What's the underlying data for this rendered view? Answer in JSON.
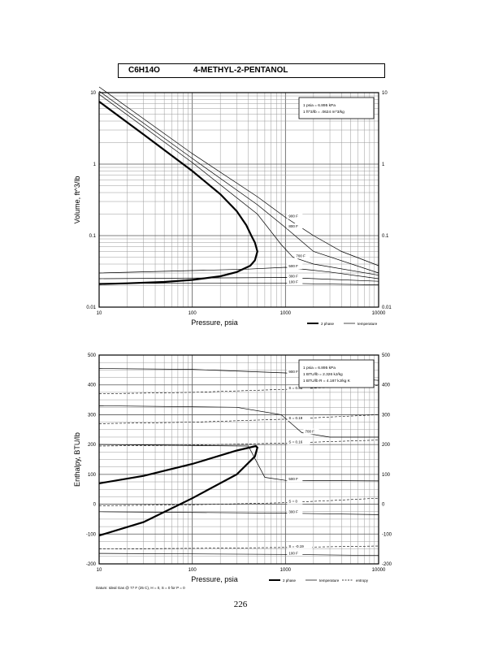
{
  "header": {
    "formula": "C6H14O",
    "name": "4-METHYL-2-PENTANOL"
  },
  "page_number": "226",
  "chart_data": [
    {
      "type": "line",
      "xlabel": "Pressure,  psia",
      "ylabel": "Volume, ft^3/lb",
      "xscale": "log",
      "yscale": "log",
      "xlim": [
        10,
        10000
      ],
      "ylim": [
        0.01,
        10
      ],
      "x_ticks": [
        "10",
        "100",
        "1000",
        "10000"
      ],
      "y_ticks_left": [
        "10",
        "1",
        "0.1",
        "0.01"
      ],
      "y_ticks_right": [
        "10",
        "1",
        "0.1",
        "0.01"
      ],
      "grid": true,
      "legend_position": "bottom-right",
      "legend": [
        "2 phase",
        "temperature"
      ],
      "conversion_box": [
        "1 psia = 6.895 kPa",
        "1 ft^3/lb = .0624 m^3/kg"
      ],
      "series": [
        {
          "name": "2 phase",
          "style": "two-phase",
          "x": [
            10,
            30,
            100,
            200,
            300,
            380,
            430,
            470,
            500,
            470,
            420,
            300,
            200,
            100,
            50,
            20,
            10
          ],
          "y": [
            7.5,
            2.6,
            0.8,
            0.38,
            0.22,
            0.14,
            0.1,
            0.08,
            0.06,
            0.045,
            0.038,
            0.031,
            0.027,
            0.024,
            0.0225,
            0.0215,
            0.021
          ]
        },
        {
          "label": "900 F",
          "style": "isotherm",
          "x": [
            10,
            100,
            500,
            1000,
            2000,
            4000,
            10000
          ],
          "y": [
            12,
            1.4,
            0.35,
            0.18,
            0.1,
            0.06,
            0.038
          ]
        },
        {
          "label": "800 F",
          "style": "isotherm",
          "x": [
            10,
            100,
            500,
            1000,
            2000,
            10000
          ],
          "y": [
            10.5,
            1.2,
            0.27,
            0.13,
            0.06,
            0.03
          ]
        },
        {
          "label": "700 F",
          "style": "isotherm",
          "x": [
            10,
            100,
            500,
            900,
            1200,
            2000,
            10000
          ],
          "y": [
            9.5,
            1.05,
            0.2,
            0.075,
            0.05,
            0.04,
            0.028
          ]
        },
        {
          "label": "500 F",
          "style": "isotherm",
          "x": [
            10,
            400,
            1000,
            3000,
            10000
          ],
          "y": [
            0.03,
            0.034,
            0.036,
            0.031,
            0.025
          ]
        },
        {
          "label": "300 F",
          "style": "isotherm",
          "x": [
            10,
            1000,
            10000
          ],
          "y": [
            0.025,
            0.026,
            0.023
          ]
        },
        {
          "label": "100 F",
          "style": "isotherm",
          "x": [
            10,
            1000,
            10000
          ],
          "y": [
            0.0215,
            0.0215,
            0.0205
          ]
        }
      ]
    },
    {
      "type": "line",
      "xlabel": "Pressure,  psia",
      "ylabel": "Enthalpy, BTU/lb",
      "xscale": "log",
      "yscale": "linear",
      "xlim": [
        10,
        10000
      ],
      "ylim": [
        -200,
        500
      ],
      "x_ticks": [
        "10",
        "100",
        "1000",
        "10000"
      ],
      "y_ticks": [
        "500",
        "400",
        "300",
        "200",
        "100",
        "0",
        "-100",
        "-200"
      ],
      "grid": true,
      "legend_position": "bottom-right",
      "legend": [
        "2 phase",
        "temperature",
        "entropy"
      ],
      "conversion_box": [
        "1 psia = 6.895 kPa",
        "1 BTU/lb = 2.326 kJ/kg",
        "1 BTU/lb R = 4.187 kJ/kg K"
      ],
      "footnote": "Datum: Ideal Gas @ 77 F (25 C),  H = 0,  S = 0 for P = 0",
      "series": [
        {
          "name": "2 phase",
          "style": "two-phase",
          "x": [
            10,
            30,
            100,
            300,
            480,
            500,
            470,
            300,
            100,
            30,
            10
          ],
          "y": [
            70,
            95,
            135,
            180,
            195,
            190,
            160,
            100,
            20,
            -60,
            -105
          ]
        },
        {
          "label": "900 F",
          "style": "isotherm",
          "x": [
            10,
            100,
            1000,
            10000
          ],
          "y": [
            455,
            452,
            440,
            415
          ]
        },
        {
          "label": "700 F",
          "style": "isotherm",
          "x": [
            10,
            300,
            900,
            1500,
            3000,
            10000
          ],
          "y": [
            330,
            325,
            300,
            240,
            225,
            225
          ]
        },
        {
          "label": "500 F",
          "style": "isotherm",
          "x": [
            10,
            400,
            600,
            1000,
            10000
          ],
          "y": [
            200,
            195,
            90,
            80,
            78
          ]
        },
        {
          "label": "300 F",
          "style": "isotherm",
          "x": [
            10,
            1000,
            10000
          ],
          "y": [
            -25,
            -30,
            -35
          ]
        },
        {
          "label": "100 F",
          "style": "isotherm",
          "x": [
            10,
            1000,
            10000
          ],
          "y": [
            -165,
            -168,
            -172
          ]
        },
        {
          "label": "S = 0.35",
          "style": "entropy",
          "x": [
            10,
            100,
            1000,
            10000
          ],
          "y": [
            370,
            375,
            385,
            398
          ]
        },
        {
          "label": "S = 0.19",
          "style": "entropy",
          "x": [
            10,
            100,
            1000,
            10000
          ],
          "y": [
            270,
            275,
            285,
            300
          ]
        },
        {
          "label": "S = 0.16",
          "style": "entropy",
          "x": [
            10,
            100,
            1000,
            10000
          ],
          "y": [
            195,
            198,
            205,
            215
          ]
        },
        {
          "label": "S = 0",
          "style": "entropy",
          "x": [
            10,
            100,
            1000,
            10000
          ],
          "y": [
            -5,
            -2,
            5,
            20
          ]
        },
        {
          "label": "S = -0.19",
          "style": "entropy",
          "x": [
            10,
            100,
            1000,
            10000
          ],
          "y": [
            -150,
            -148,
            -145,
            -140
          ]
        }
      ]
    }
  ]
}
